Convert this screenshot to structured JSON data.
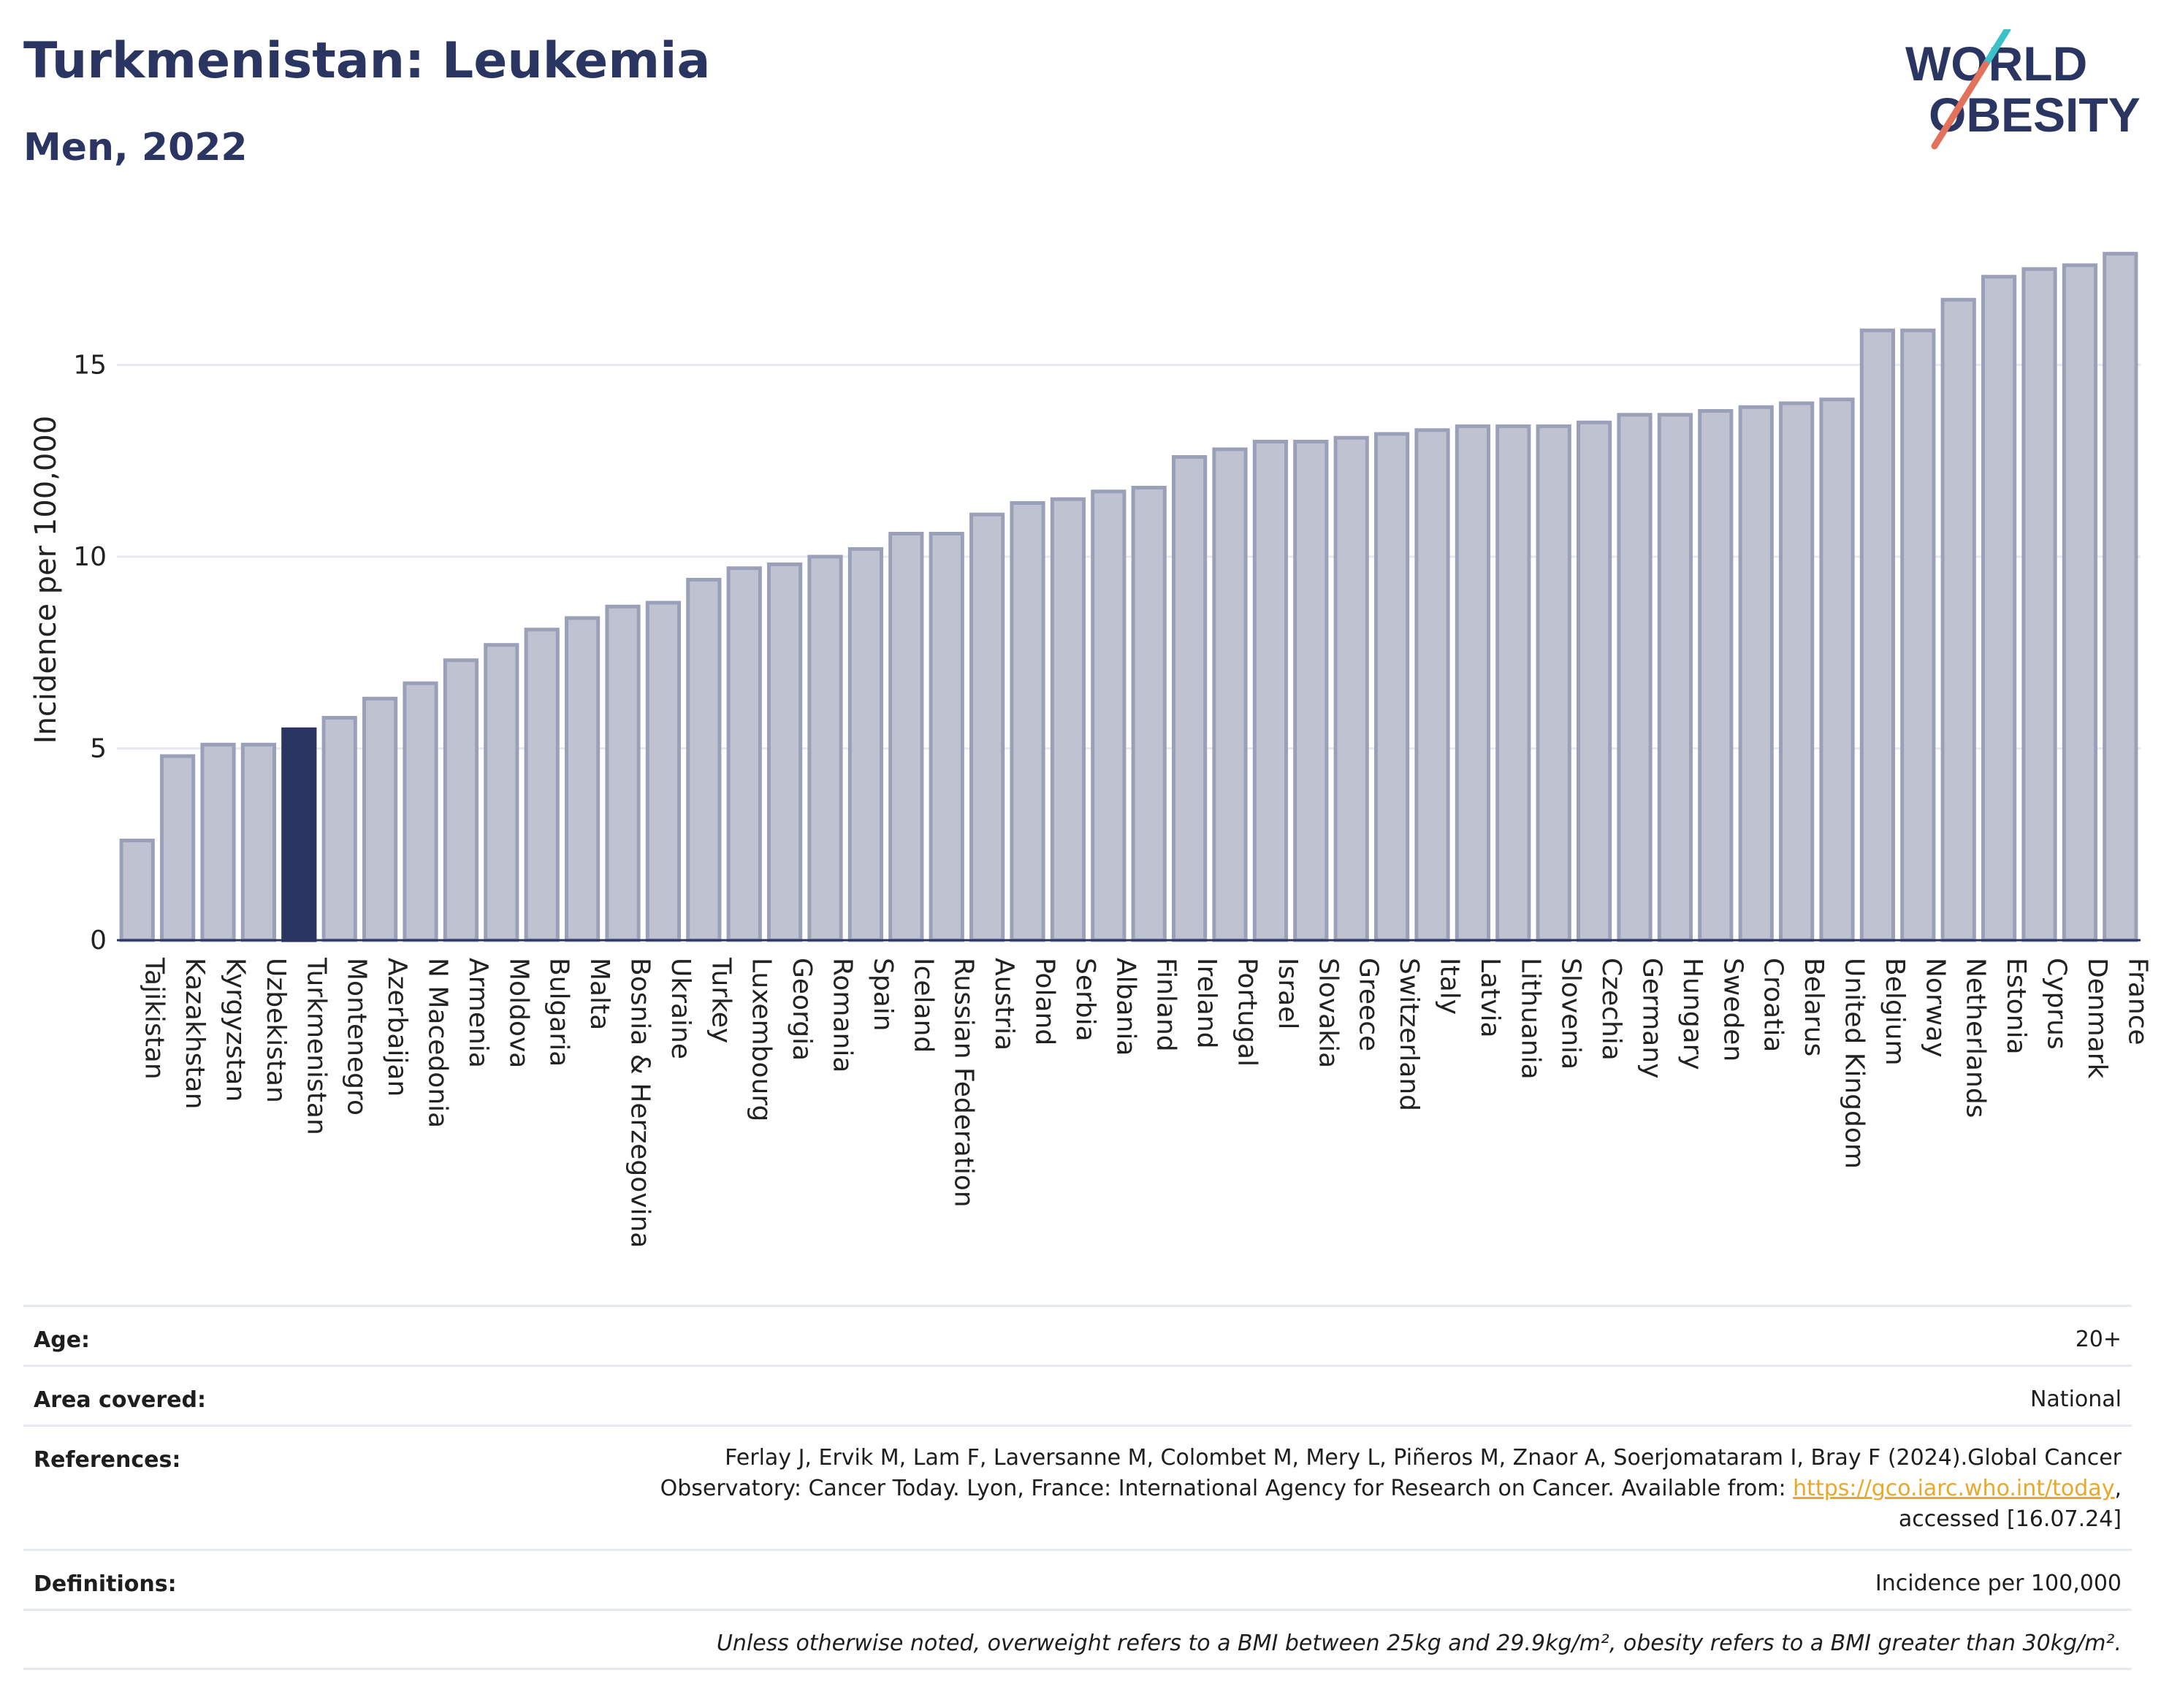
{
  "header": {
    "title": "Turkmenistan: Leukemia",
    "subtitle": "Men, 2022"
  },
  "logo": {
    "line1": "WORLD",
    "line2": "OBESITY",
    "slash_color": "#e2725b",
    "accent_color": "#3cc1c8"
  },
  "colors": {
    "bar": "#bfc3d1",
    "bar_stroke": "#9aa0b8",
    "highlight": "#2b3562",
    "grid": "#e8eaf1",
    "text": "#2b3562"
  },
  "chart_data": {
    "type": "bar",
    "ylabel": "Incidence per 100,000",
    "ylim": [
      0,
      18.8
    ],
    "yticks": [
      0,
      5,
      10,
      15
    ],
    "highlight": "Turkmenistan",
    "categories": [
      "Tajikistan",
      "Kazakhstan",
      "Kyrgyzstan",
      "Uzbekistan",
      "Turkmenistan",
      "Montenegro",
      "Azerbaijan",
      "N Macedonia",
      "Armenia",
      "Moldova",
      "Bulgaria",
      "Malta",
      "Bosnia & Herzegovina",
      "Ukraine",
      "Turkey",
      "Luxembourg",
      "Georgia",
      "Romania",
      "Spain",
      "Iceland",
      "Russian Federation",
      "Austria",
      "Poland",
      "Serbia",
      "Albania",
      "Finland",
      "Ireland",
      "Portugal",
      "Israel",
      "Slovakia",
      "Greece",
      "Switzerland",
      "Italy",
      "Latvia",
      "Lithuania",
      "Slovenia",
      "Czechia",
      "Germany",
      "Hungary",
      "Sweden",
      "Croatia",
      "Belarus",
      "United Kingdom",
      "Belgium",
      "Norway",
      "Netherlands",
      "Estonia",
      "Cyprus",
      "Denmark",
      "France"
    ],
    "values": [
      2.6,
      4.8,
      5.1,
      5.1,
      5.5,
      5.8,
      6.3,
      6.7,
      7.3,
      7.7,
      8.1,
      8.4,
      8.7,
      8.8,
      9.4,
      9.7,
      9.8,
      10.0,
      10.2,
      10.6,
      10.6,
      11.1,
      11.4,
      11.5,
      11.7,
      11.8,
      12.6,
      12.8,
      13.0,
      13.0,
      13.1,
      13.2,
      13.3,
      13.4,
      13.4,
      13.4,
      13.5,
      13.7,
      13.7,
      13.8,
      13.9,
      14.0,
      14.1,
      15.9,
      15.9,
      16.7,
      17.3,
      17.5,
      17.6,
      17.9
    ]
  },
  "table": {
    "age_label": "Age:",
    "age_value": "20+",
    "area_label": "Area covered:",
    "area_value": "National",
    "references_label": "References:",
    "references_line1": "Ferlay J, Ervik M, Lam F, Laversanne M, Colombet M, Mery L, Piñeros M, Znaor A, Soerjomataram I, Bray F (2024).Global Cancer",
    "references_line2": "Observatory: Cancer Today. Lyon, France: International Agency for Research on Cancer. Available from:",
    "references_link": "https://gco.iarc.who.int/today",
    "references_line3": "accessed [16.07.24]",
    "definitions_label": "Definitions:",
    "definitions_value": "Incidence per 100,000",
    "note": "Unless otherwise noted, overweight refers to a BMI between 25kg and 29.9kg/m², obesity refers to a BMI greater than 30kg/m²."
  }
}
